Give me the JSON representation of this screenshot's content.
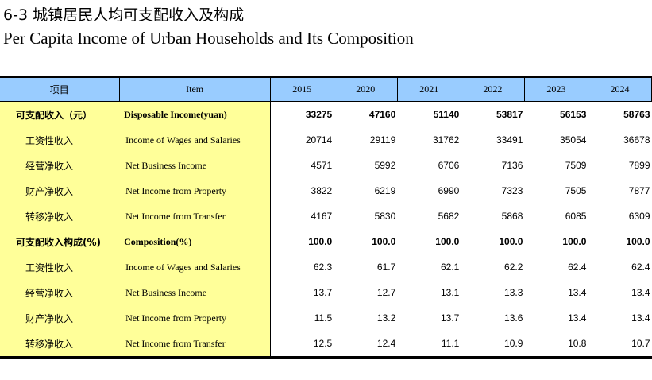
{
  "title_cn": "6-3 城镇居民人均可支配收入及构成",
  "title_en": "Per Capita Income of Urban Households and Its Composition",
  "header": {
    "item_cn": "项目",
    "item_en": "Item",
    "years": [
      "2015",
      "2020",
      "2021",
      "2022",
      "2023",
      "2024"
    ]
  },
  "rows": [
    {
      "cn": "可支配收入（元）",
      "en": "Disposable Income(yuan)",
      "bold": true,
      "values": [
        "33275",
        "47160",
        "51140",
        "53817",
        "56153",
        "58763"
      ]
    },
    {
      "cn": "工资性收入",
      "en": "Income of Wages and Salaries",
      "values": [
        "20714",
        "29119",
        "31762",
        "33491",
        "35054",
        "36678"
      ]
    },
    {
      "cn": "经营净收入",
      "en": "Net Business Income",
      "values": [
        "4571",
        "5992",
        "6706",
        "7136",
        "7509",
        "7899"
      ]
    },
    {
      "cn": "财产净收入",
      "en": "Net Income from  Property",
      "values": [
        "3822",
        "6219",
        "6990",
        "7323",
        "7505",
        "7877"
      ]
    },
    {
      "cn": "转移净收入",
      "en": "Net Income from Transfer",
      "values": [
        "4167",
        "5830",
        "5682",
        "5868",
        "6085",
        "6309"
      ]
    },
    {
      "cn": "可支配收入构成(%)",
      "en": "Composition(%)",
      "bold": true,
      "values": [
        "100.0",
        "100.0",
        "100.0",
        "100.0",
        "100.0",
        "100.0"
      ]
    },
    {
      "cn": "工资性收入",
      "en": "Income of Wages and Salaries",
      "values": [
        "62.3",
        "61.7",
        "62.1",
        "62.2",
        "62.4",
        "62.4"
      ]
    },
    {
      "cn": "经营净收入",
      "en": "Net Business Income",
      "values": [
        "13.7",
        "12.7",
        "13.1",
        "13.3",
        "13.4",
        "13.4"
      ]
    },
    {
      "cn": "财产净收入",
      "en": "Net Income from  Property",
      "values": [
        "11.5",
        "13.2",
        "13.7",
        "13.6",
        "13.4",
        "13.4"
      ]
    },
    {
      "cn": "转移净收入",
      "en": "Net Income from Transfer",
      "values": [
        "12.5",
        "12.4",
        "11.1",
        "10.9",
        "10.8",
        "10.7"
      ]
    }
  ]
}
